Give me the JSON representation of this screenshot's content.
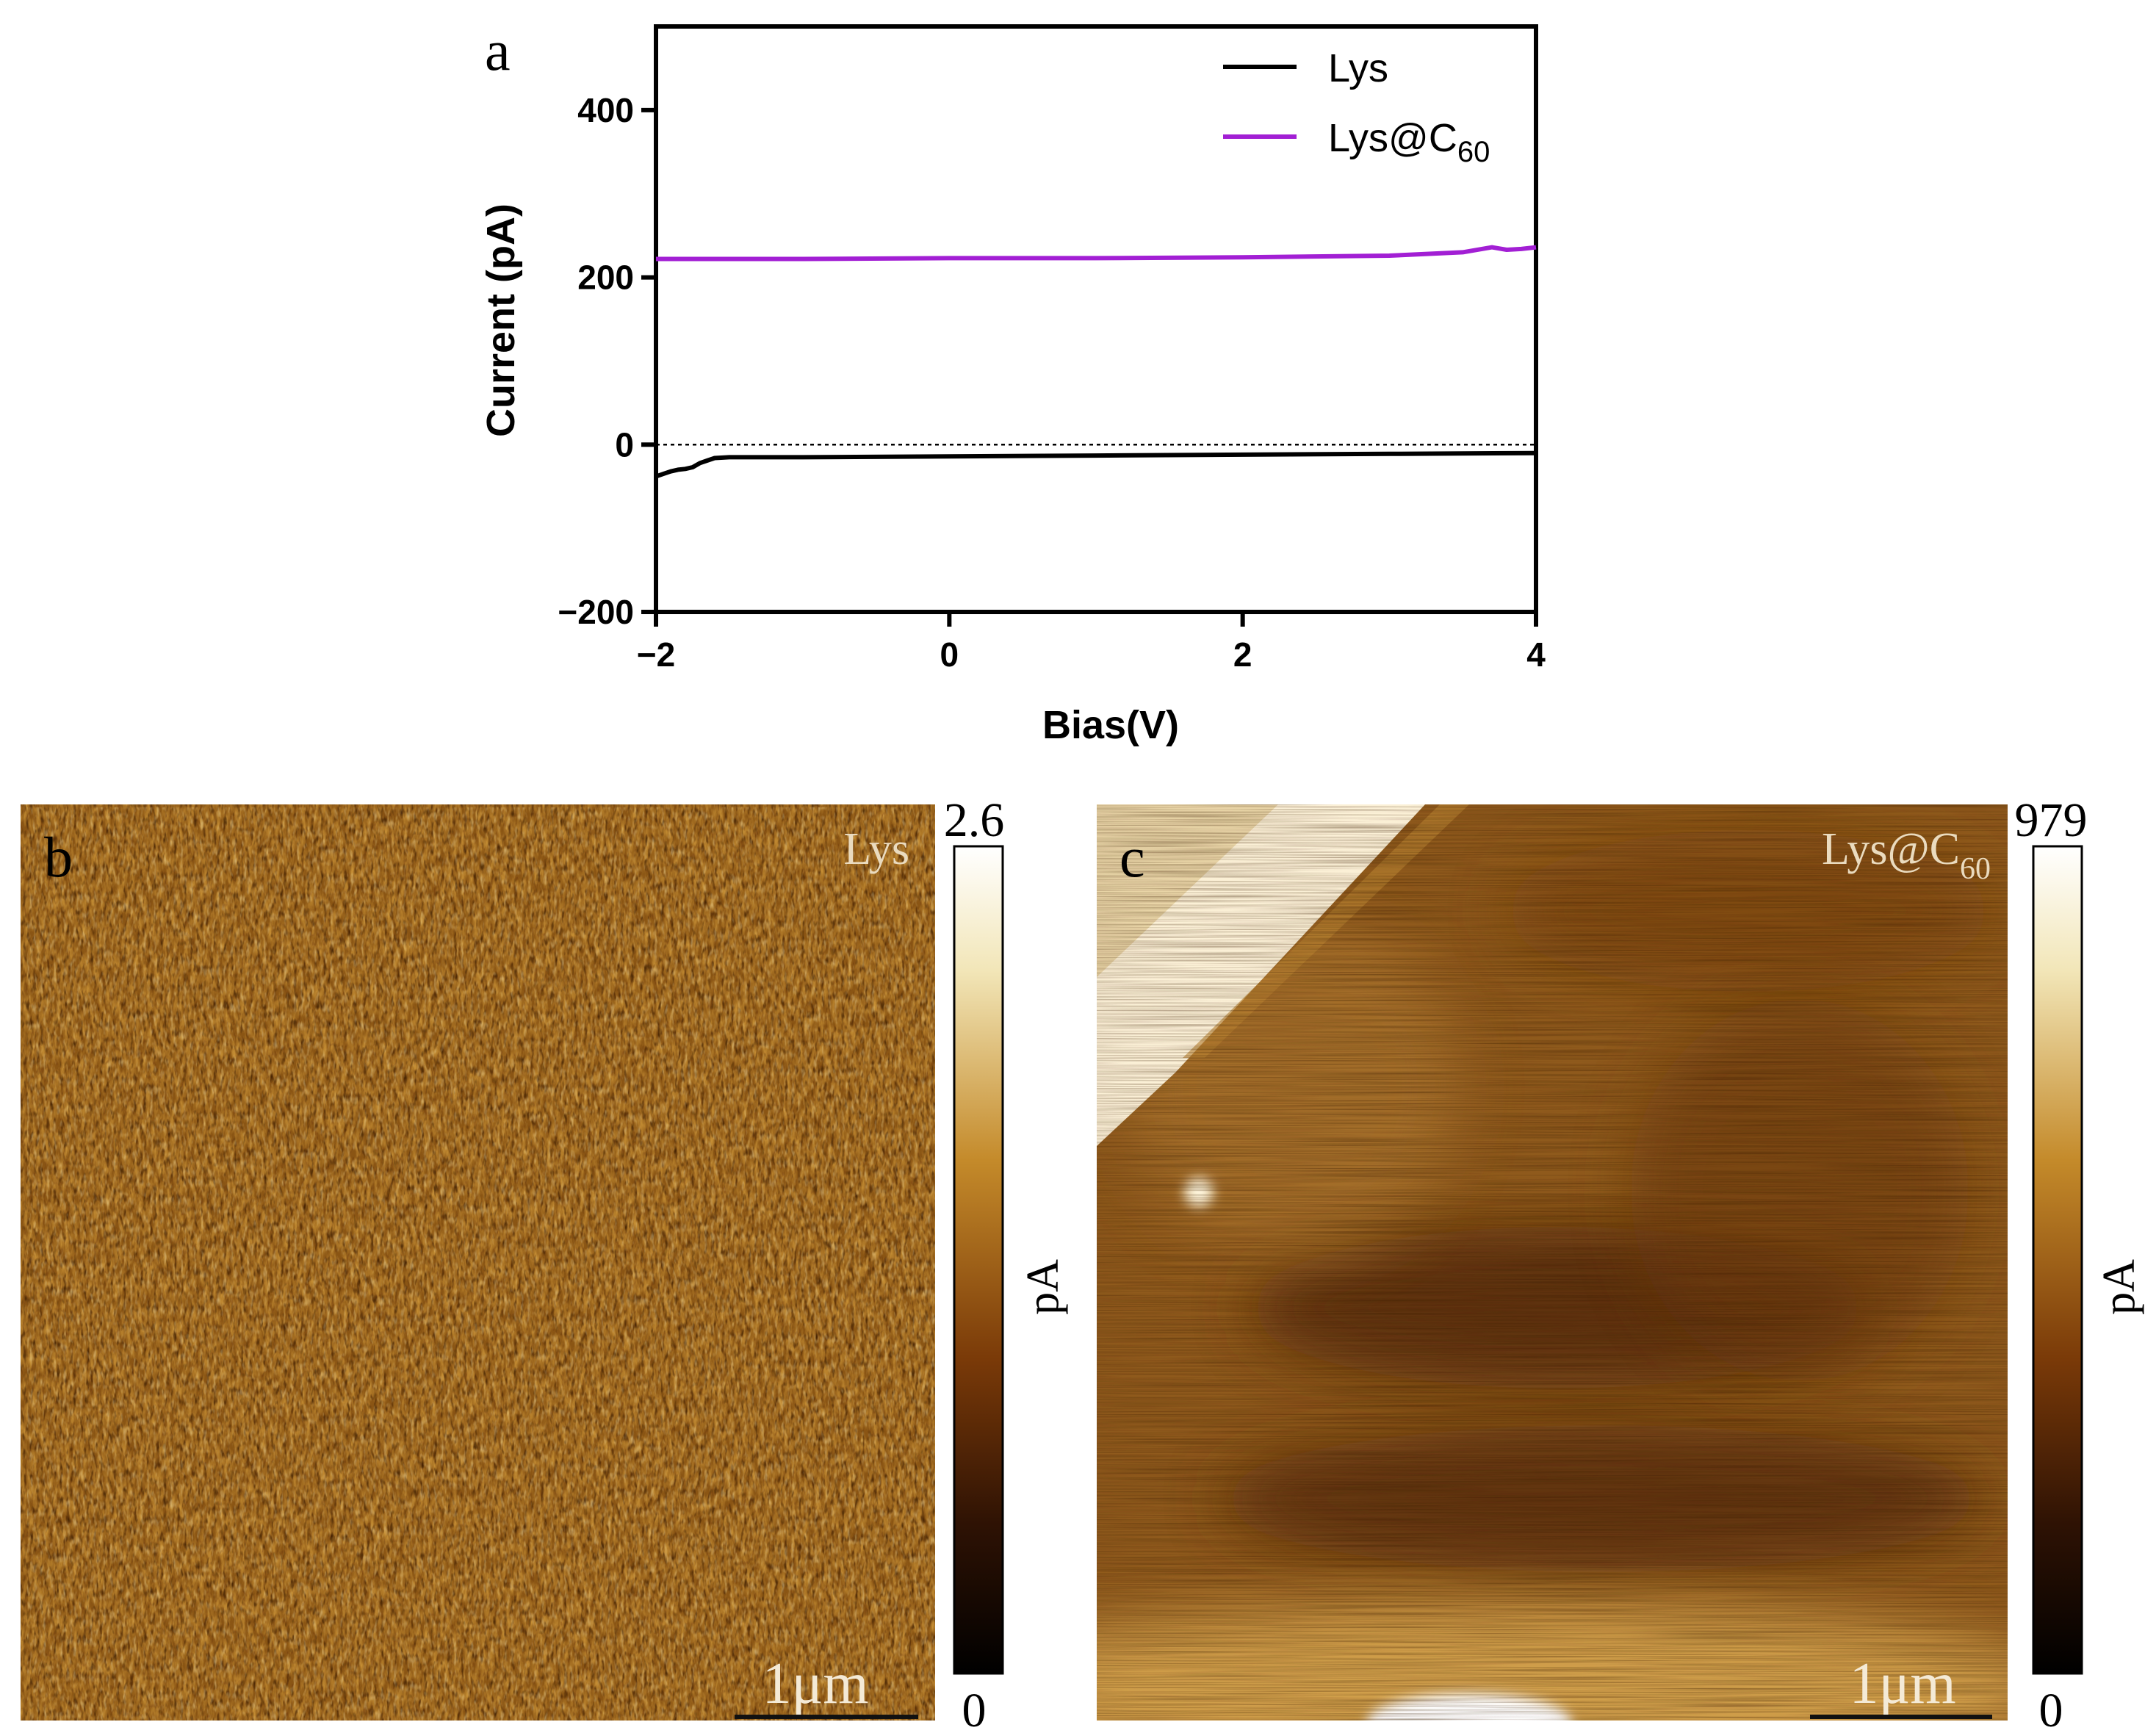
{
  "panels": {
    "a": {
      "letter": "a"
    },
    "b": {
      "letter": "b",
      "sample_label": "Lys",
      "scale_bar": "1μm",
      "colorbar": {
        "max": "2.6",
        "min": "0",
        "unit": "pA"
      }
    },
    "c": {
      "letter": "c",
      "sample_label_main": "Lys@C",
      "sample_label_sub": "60",
      "scale_bar": "1μm",
      "colorbar": {
        "max": "979",
        "min": "0",
        "unit": "pA"
      }
    }
  },
  "chart_data": {
    "type": "line",
    "xlabel": "Bias(V)",
    "ylabel": "Current (pA)",
    "xlim": [
      -2,
      4
    ],
    "ylim": [
      -200,
      500
    ],
    "xticks": [
      -2,
      0,
      2,
      4
    ],
    "yticks": [
      -200,
      0,
      200,
      400
    ],
    "xtick_labels": [
      "−2",
      "0",
      "2",
      "4"
    ],
    "ytick_labels": [
      "−200",
      "0",
      "200",
      "400"
    ],
    "reference_line": {
      "y": 0,
      "style": "dotted"
    },
    "legend_position": "top-right",
    "series": [
      {
        "name": "Lys",
        "color": "#000000",
        "x": [
          -2.0,
          -1.95,
          -1.9,
          -1.85,
          -1.8,
          -1.75,
          -1.7,
          -1.65,
          -1.6,
          -1.5,
          -1.0,
          0.0,
          1.0,
          2.0,
          3.0,
          4.0
        ],
        "y": [
          -38,
          -35,
          -32,
          -30,
          -29,
          -27,
          -22,
          -19,
          -16,
          -15,
          -15,
          -14,
          -13,
          -12,
          -11,
          -10
        ]
      },
      {
        "name": "Lys@C60",
        "name_main": "Lys@C",
        "name_sub": "60",
        "color": "#a21fd4",
        "x": [
          -2.0,
          -1.0,
          0.0,
          1.0,
          2.0,
          3.0,
          3.5,
          3.7,
          3.8,
          3.9,
          4.0
        ],
        "y": [
          222,
          222,
          223,
          223,
          224,
          226,
          230,
          236,
          233,
          234,
          236
        ]
      }
    ]
  }
}
